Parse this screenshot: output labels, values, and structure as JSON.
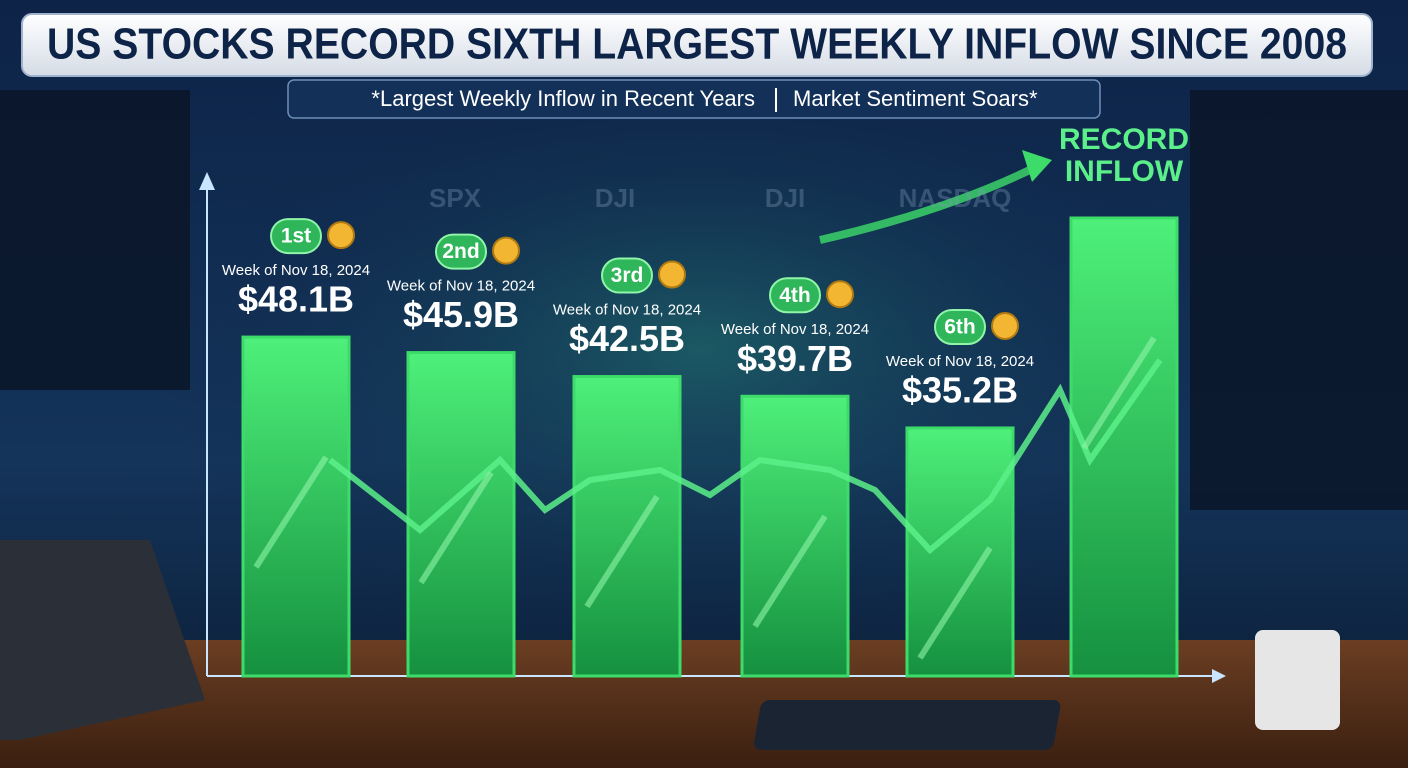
{
  "chart_data": {
    "type": "bar",
    "title": "US STOCKS RECORD SIXTH LARGEST WEEKLY INFLOW SINCE 2008",
    "subtitle": [
      "*Largest Weekly Inflow in Recent Years",
      "Market Sentiment Soars*"
    ],
    "background_labels": [
      "SPX",
      "DJI",
      "DJI",
      "NASDAQ"
    ],
    "categories": [
      "1st",
      "2nd",
      "3rd",
      "4th",
      "6th",
      "RECORD INFLOW"
    ],
    "periods": [
      "Week of Nov 18, 2024",
      "Week of Nov 18, 2024",
      "Week of Nov 18, 2024",
      "Week of Nov 18, 2024",
      "Week of Nov 18, 2024",
      null
    ],
    "values": [
      48.1,
      45.9,
      42.5,
      39.7,
      35.2,
      65
    ],
    "value_labels": [
      "$48.1B",
      "$45.9B",
      "$42.5B",
      "$39.7B",
      "$35.2B",
      null
    ],
    "color": "#3ddc6a"
  }
}
